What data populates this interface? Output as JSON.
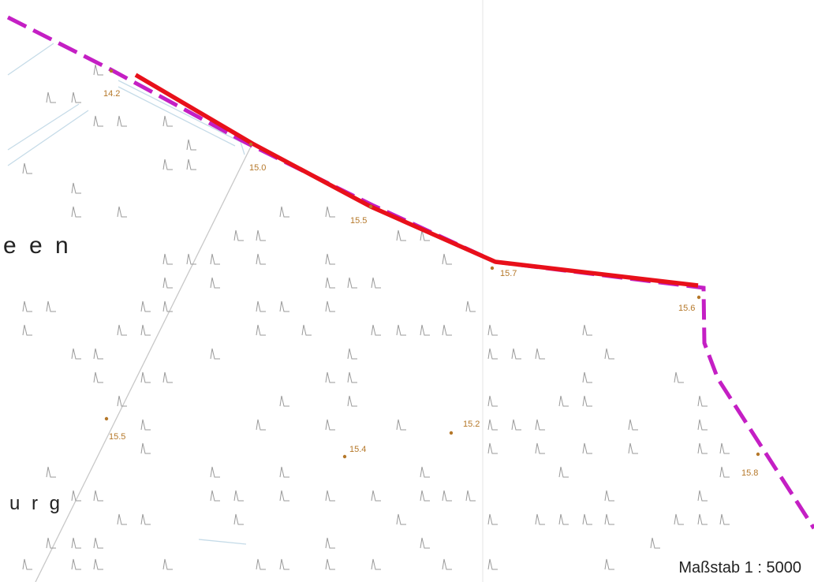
{
  "map": {
    "place_labels": [
      "e e n",
      "u r g"
    ],
    "spot_heights": [
      "14.2",
      "15.0",
      "15.5",
      "15.7",
      "15.6",
      "15.2",
      "15.4",
      "15.5",
      "15.8"
    ],
    "scale_label": "Maßstab 1 : 5000",
    "colors": {
      "boundary_highlight": "#e8101a",
      "boundary_dashed": "#c41fc4",
      "road": "#c8c8c8",
      "water": "#c5dbe8",
      "spot_height": "#b5782a",
      "marsh_symbol": "#9a9a9a"
    },
    "symbol": "marsh-grass-icon"
  }
}
